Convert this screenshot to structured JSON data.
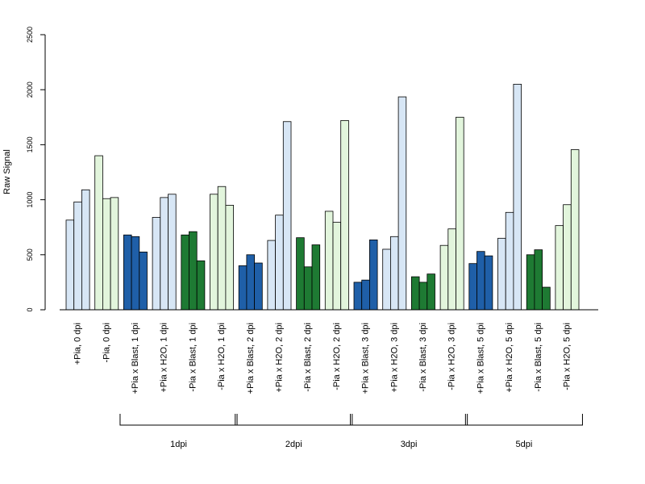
{
  "chart_data": {
    "type": "bar",
    "ylabel": "Raw Signal",
    "ylim": [
      0,
      2500
    ],
    "yticks": [
      0,
      500,
      1000,
      1500,
      2000,
      2500
    ],
    "colors": {
      "light_blue": "#d7e6f5",
      "light_green": "#e2f5dc",
      "dark_blue": "#1f5fa8",
      "dark_green": "#1e7a33",
      "outline": "#000000"
    },
    "categories": [
      {
        "label": "+Pia, 0 dpi",
        "color": "light_blue",
        "values": [
          815,
          980,
          1090
        ]
      },
      {
        "label": "-Pia, 0 dpi",
        "color": "light_green",
        "values": [
          1400,
          1010,
          1020
        ]
      },
      {
        "label": "+Pia x Blast, 1 dpi",
        "color": "dark_blue",
        "values": [
          680,
          665,
          525
        ]
      },
      {
        "label": "+Pia x H2O, 1 dpi",
        "color": "light_blue",
        "values": [
          840,
          1020,
          1050
        ]
      },
      {
        "label": "-Pia x Blast, 1 dpi",
        "color": "dark_green",
        "values": [
          680,
          710,
          445
        ]
      },
      {
        "label": "-Pia x H2O, 1 dpi",
        "color": "light_green",
        "values": [
          1050,
          1120,
          950
        ]
      },
      {
        "label": "+Pia x Blast, 2 dpi",
        "color": "dark_blue",
        "values": [
          400,
          500,
          425
        ]
      },
      {
        "label": "+Pia x H2O, 2 dpi",
        "color": "light_blue",
        "values": [
          630,
          860,
          1710
        ]
      },
      {
        "label": "-Pia x Blast, 2 dpi",
        "color": "dark_green",
        "values": [
          655,
          390,
          590
        ]
      },
      {
        "label": "-Pia x H2O, 2 dpi",
        "color": "light_green",
        "values": [
          895,
          795,
          1720
        ]
      },
      {
        "label": "+Pia x Blast, 3 dpi",
        "color": "dark_blue",
        "values": [
          250,
          270,
          635
        ]
      },
      {
        "label": "+Pia x H2O, 3 dpi",
        "color": "light_blue",
        "values": [
          550,
          665,
          1935
        ]
      },
      {
        "label": "-Pia x Blast, 3 dpi",
        "color": "dark_green",
        "values": [
          300,
          250,
          325
        ]
      },
      {
        "label": "-Pia x H2O, 3 dpi",
        "color": "light_green",
        "values": [
          585,
          735,
          1750
        ]
      },
      {
        "label": "+Pia x Blast, 5 dpi",
        "color": "dark_blue",
        "values": [
          420,
          530,
          490
        ]
      },
      {
        "label": "+Pia x H2O, 5 dpi",
        "color": "light_blue",
        "values": [
          650,
          885,
          2050
        ]
      },
      {
        "label": "-Pia x Blast, 5 dpi",
        "color": "dark_green",
        "values": [
          500,
          545,
          205
        ]
      },
      {
        "label": "-Pia x H2O, 5 dpi",
        "color": "light_green",
        "values": [
          765,
          955,
          1455
        ]
      }
    ],
    "groups": [
      {
        "label": "1dpi",
        "first": 2,
        "last": 5
      },
      {
        "label": "2dpi",
        "first": 6,
        "last": 9
      },
      {
        "label": "3dpi",
        "first": 10,
        "last": 13
      },
      {
        "label": "5dpi",
        "first": 14,
        "last": 17
      }
    ]
  }
}
